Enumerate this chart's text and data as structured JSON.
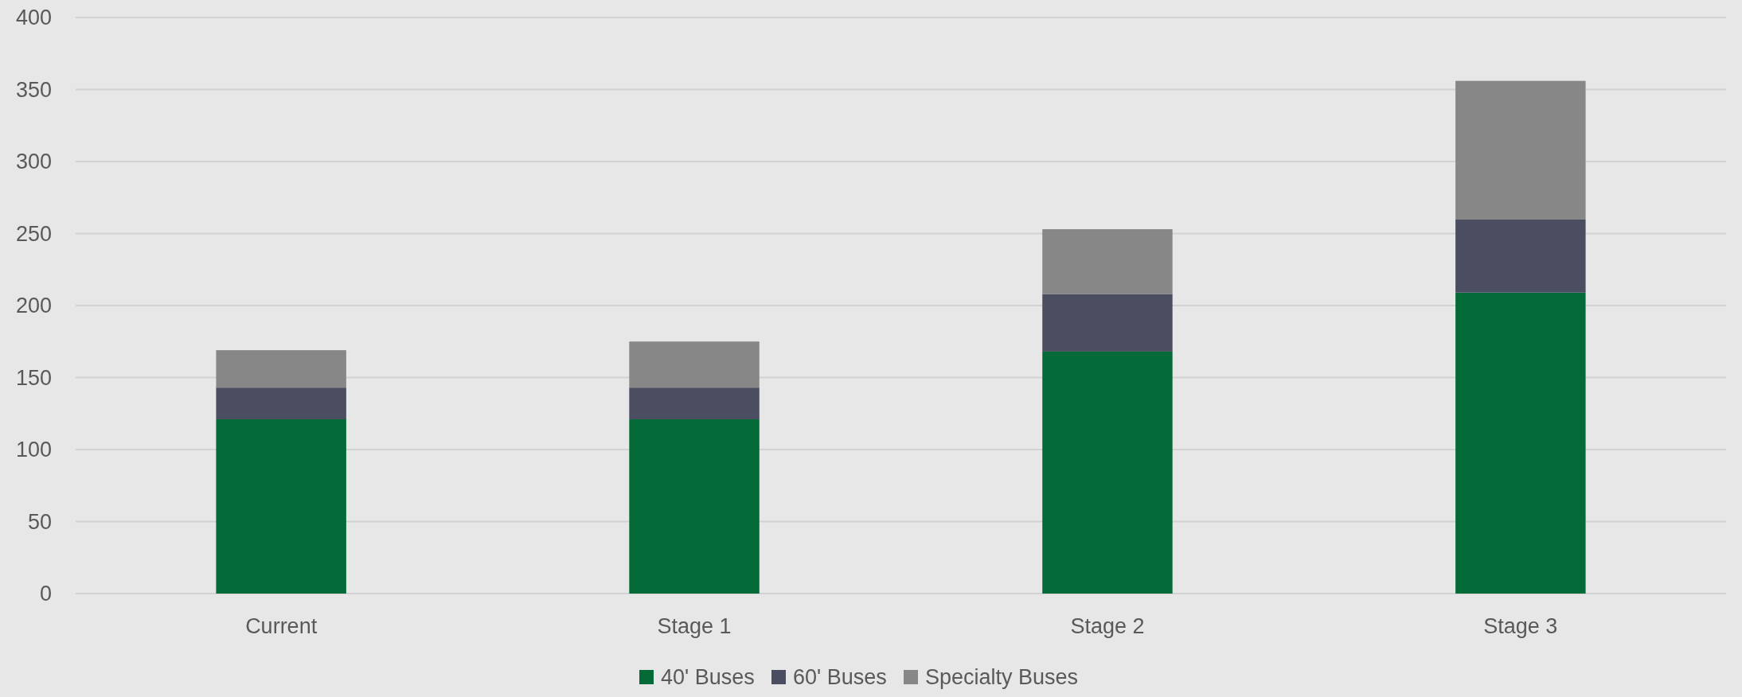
{
  "chart_data": {
    "type": "bar",
    "stacked": true,
    "categories": [
      "Current",
      "Stage 1",
      "Stage 2",
      "Stage 3"
    ],
    "series": [
      {
        "name": "40' Buses",
        "color": "#046a38",
        "values": [
          121,
          121,
          168,
          209
        ]
      },
      {
        "name": "60' Buses",
        "color": "#4a4e60",
        "values": [
          22,
          22,
          40,
          51
        ]
      },
      {
        "name": "Specialty Buses",
        "color": "#878787",
        "values": [
          26,
          32,
          45,
          96
        ]
      }
    ],
    "ylim": [
      0,
      400
    ],
    "yticks": [
      0,
      50,
      100,
      150,
      200,
      250,
      300,
      350,
      400
    ],
    "grid": "y",
    "legend": "bottom"
  }
}
